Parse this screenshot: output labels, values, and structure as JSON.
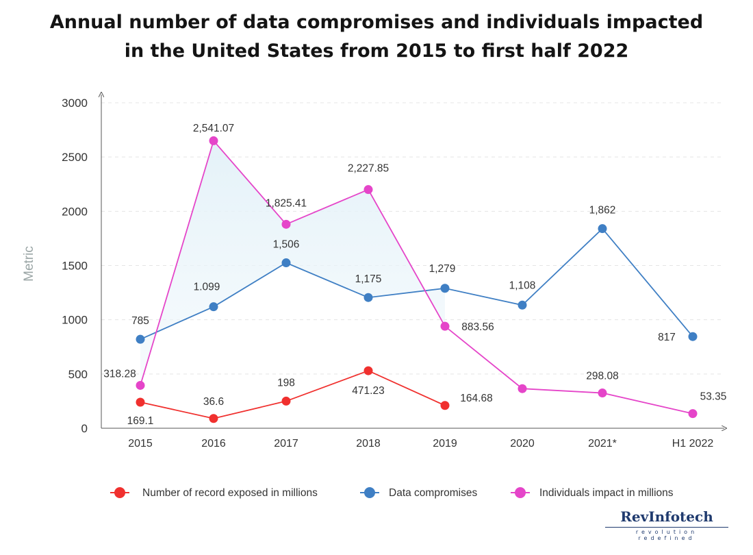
{
  "title": {
    "line1": "Annual number of data compromises and individuals impacted",
    "line2": "in the United States from 2015 to first half 2022"
  },
  "chart_data": {
    "type": "line",
    "ylabel": "Metric",
    "xlabel": "",
    "ylim": [
      0,
      3000
    ],
    "yticks": [
      0,
      500,
      1000,
      1500,
      2000,
      2500,
      3000
    ],
    "categories": [
      "2015",
      "2016",
      "2017",
      "2018",
      "2019",
      "2020",
      "2021*",
      "H1 2022"
    ],
    "grid": true,
    "legend_position": "bottom",
    "series": [
      {
        "name": "Number of record exposed in millions",
        "color": "#f0302e",
        "plotted": [
          240,
          90,
          250,
          530,
          210,
          null,
          null,
          null
        ],
        "labels": [
          "169.1",
          "36.6",
          "198",
          "471.23",
          "164.68",
          null,
          null,
          null
        ]
      },
      {
        "name": "Data compromises",
        "color": "#3f7fc4",
        "plotted": [
          820,
          1120,
          1525,
          1205,
          1290,
          1135,
          1840,
          845
        ],
        "labels": [
          "785",
          "1.099",
          "1,506",
          "1,175",
          "1,279",
          "1,108",
          "1,862",
          "817"
        ]
      },
      {
        "name": "Individuals impact in millions",
        "color": "#e545c9",
        "plotted": [
          395,
          2650,
          1880,
          2200,
          940,
          365,
          325,
          135
        ],
        "labels": [
          "318.28",
          null,
          "1,825.41",
          "2,227.85",
          "883.56",
          null,
          "298.08",
          "53.35"
        ],
        "peak_label": "2,541.07"
      }
    ]
  },
  "brand": {
    "name": "RevInfotech",
    "tagline": "revolution redefined"
  }
}
